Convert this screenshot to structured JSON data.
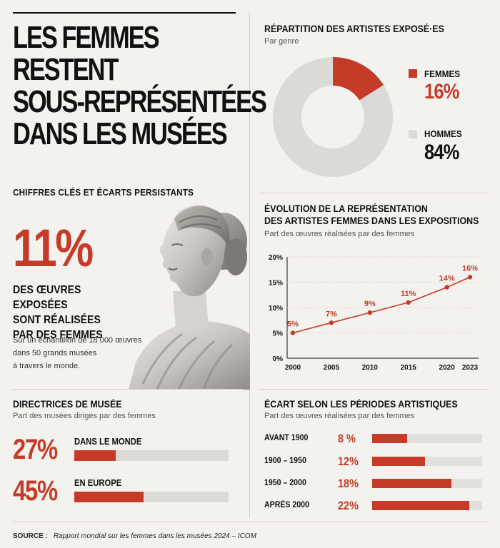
{
  "title_lines": [
    "LES FEMMES",
    "RESTENT",
    "SOUS-REPRÉSENTÉES",
    "DANS LES MUSÉES"
  ],
  "subtitle": "CHIFFRES CLÉS ET ÉCARTS PERSISTANTS",
  "key_stat": {
    "value": "11%",
    "caption_lines": [
      "DES ŒUVRES EXPOSÉES",
      "SONT RÉALISÉES",
      "PAR DES FEMMES"
    ],
    "note_lines": [
      "Sur un échantillon de 18 000 œuvres",
      "dans 50 grands musées",
      "à travers le monde."
    ]
  },
  "colors": {
    "accent": "#c63b27",
    "grey": "#dcdad6",
    "ink": "#111111"
  },
  "donut": {
    "title": "RÉPARTITION DES ARTISTES EXPOSÉ·ES",
    "subtitle": "Par genre",
    "women_label": "FEMMES",
    "women_value": "16%",
    "men_label": "HOMMES",
    "men_value": "84%"
  },
  "line": {
    "title_lines": [
      "ÉVOLUTION DE LA REPRÉSENTATION",
      "DES ARTISTES FEMMES DANS LES EXPOSITIONS"
    ],
    "subtitle": "Part des œuvres réalisées par des femmes"
  },
  "directors": {
    "title": "DIRECTRICES DE MUSÉE",
    "subtitle": "Part des musées dirigés par des femmes",
    "rows": [
      {
        "value_label": "27%",
        "label": "DANS LE MONDE",
        "value": 27
      },
      {
        "value_label": "45%",
        "label": "EN EUROPE",
        "value": 45
      }
    ]
  },
  "periods": {
    "title": "ÉCART SELON LES PÉRIODES ARTISTIQUES",
    "subtitle": "Part des œuvres réalisées par des femmes",
    "rows": [
      {
        "label": "AVANT 1900",
        "value_label": "8 %",
        "value": 8
      },
      {
        "label": "1900 – 1950",
        "value_label": "12%",
        "value": 12
      },
      {
        "label": "1950 – 2000",
        "value_label": "18%",
        "value": 18
      },
      {
        "label": "APRÈS 2000",
        "value_label": "22%",
        "value": 22
      }
    ]
  },
  "source": {
    "label": "SOURCE :",
    "text": "Rapport mondial sur les femmes dans les musées 2024 – ICOM"
  },
  "chart_data": [
    {
      "type": "pie",
      "title": "RÉPARTITION DES ARTISTES EXPOSÉ·ES",
      "subtitle": "Par genre",
      "categories": [
        "FEMMES",
        "HOMMES"
      ],
      "values": [
        16,
        84
      ],
      "legend": "right"
    },
    {
      "type": "line",
      "title": "ÉVOLUTION DE LA REPRÉSENTATION DES ARTISTES FEMMES DANS LES EXPOSITIONS",
      "subtitle": "Part des œuvres réalisées par des femmes",
      "x": [
        2000,
        2005,
        2010,
        2015,
        2020,
        2023
      ],
      "x_tick_labels": [
        "2000",
        "2005",
        "2010",
        "2015",
        "2020",
        "2023"
      ],
      "y": [
        5,
        7,
        9,
        11,
        14,
        16
      ],
      "data_labels": [
        "5%",
        "7%",
        "9%",
        "11%",
        "14%",
        "16%"
      ],
      "ylim": [
        0,
        20
      ],
      "y_ticks": [
        0,
        5,
        10,
        15,
        20
      ],
      "y_tick_labels": [
        "0%",
        "5%",
        "10%",
        "15%",
        "20%"
      ],
      "grid": true
    },
    {
      "type": "bar",
      "title": "DIRECTRICES DE MUSÉE",
      "subtitle": "Part des musées dirigés par des femmes",
      "categories": [
        "DANS LE MONDE",
        "EN EUROPE"
      ],
      "values": [
        27,
        45
      ],
      "ylim": [
        0,
        100
      ]
    },
    {
      "type": "bar",
      "title": "ÉCART SELON LES PÉRIODES ARTISTIQUES",
      "subtitle": "Part des œuvres réalisées par des femmes",
      "categories": [
        "AVANT 1900",
        "1900 – 1950",
        "1950 – 2000",
        "APRÈS 2000"
      ],
      "values": [
        8,
        12,
        18,
        22
      ],
      "ylim": [
        0,
        25
      ]
    }
  ]
}
